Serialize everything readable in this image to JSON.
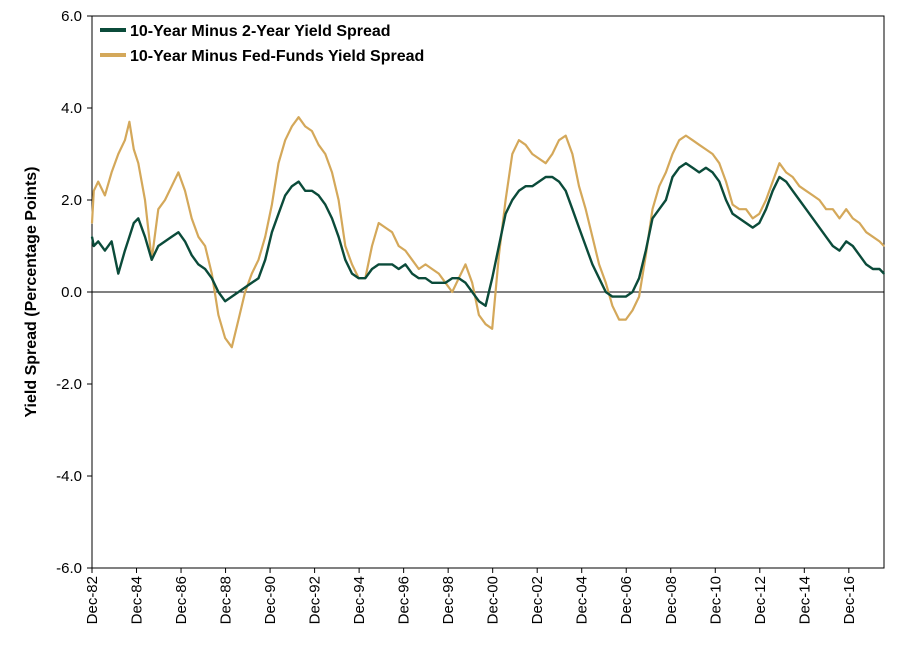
{
  "chart_data": {
    "type": "line",
    "title": "",
    "xlabel": "",
    "ylabel": "Yield Spread (Percentage Points)",
    "ylim": [
      -6.0,
      6.0
    ],
    "yticks": [
      "6.0",
      "4.0",
      "2.0",
      "0.0",
      "-2.0",
      "-4.0",
      "-6.0"
    ],
    "ytick_values": [
      6,
      4,
      2,
      0,
      -2,
      -4,
      -6
    ],
    "xlim": [
      1982.92,
      2018.5
    ],
    "xticks": [
      "Dec-82",
      "Dec-84",
      "Dec-86",
      "Dec-88",
      "Dec-90",
      "Dec-92",
      "Dec-94",
      "Dec-96",
      "Dec-98",
      "Dec-00",
      "Dec-02",
      "Dec-04",
      "Dec-06",
      "Dec-08",
      "Dec-10",
      "Dec-12",
      "Dec-14",
      "Dec-16"
    ],
    "xtick_values": [
      1982.92,
      1984.92,
      1986.92,
      1988.92,
      1990.92,
      1992.92,
      1994.92,
      1996.92,
      1998.92,
      2000.92,
      2002.92,
      2004.92,
      2006.92,
      2008.92,
      2010.92,
      2012.92,
      2014.92,
      2016.92
    ],
    "grid": false,
    "legend_position": "top-left",
    "series": [
      {
        "name": "10-Year Minus Fed-Funds Yield Spread",
        "color": "#D4A85A",
        "x": [
          1982.92,
          1983.0,
          1983.2,
          1983.5,
          1983.8,
          1984.1,
          1984.4,
          1984.6,
          1984.8,
          1985.0,
          1985.3,
          1985.6,
          1985.9,
          1986.2,
          1986.5,
          1986.8,
          1987.1,
          1987.4,
          1987.7,
          1988.0,
          1988.3,
          1988.6,
          1988.9,
          1989.2,
          1989.5,
          1989.8,
          1990.1,
          1990.4,
          1990.7,
          1991.0,
          1991.3,
          1991.6,
          1991.9,
          1992.2,
          1992.5,
          1992.8,
          1993.1,
          1993.4,
          1993.7,
          1994.0,
          1994.3,
          1994.6,
          1994.9,
          1995.2,
          1995.5,
          1995.8,
          1996.1,
          1996.4,
          1996.7,
          1997.0,
          1997.3,
          1997.6,
          1997.9,
          1998.2,
          1998.5,
          1998.8,
          1999.1,
          1999.4,
          1999.7,
          2000.0,
          2000.3,
          2000.6,
          2000.9,
          2001.2,
          2001.5,
          2001.8,
          2002.1,
          2002.4,
          2002.7,
          2003.0,
          2003.3,
          2003.6,
          2003.9,
          2004.2,
          2004.5,
          2004.8,
          2005.1,
          2005.4,
          2005.7,
          2006.0,
          2006.3,
          2006.6,
          2006.9,
          2007.2,
          2007.5,
          2007.8,
          2008.1,
          2008.4,
          2008.7,
          2009.0,
          2009.3,
          2009.6,
          2009.9,
          2010.2,
          2010.5,
          2010.8,
          2011.1,
          2011.4,
          2011.7,
          2012.0,
          2012.3,
          2012.6,
          2012.9,
          2013.2,
          2013.5,
          2013.8,
          2014.1,
          2014.4,
          2014.7,
          2015.0,
          2015.3,
          2015.6,
          2015.9,
          2016.2,
          2016.5,
          2016.8,
          2017.1,
          2017.4,
          2017.7,
          2018.0,
          2018.3,
          2018.5
        ],
        "values": [
          1.5,
          2.2,
          2.4,
          2.1,
          2.6,
          3.0,
          3.3,
          3.7,
          3.1,
          2.8,
          2.0,
          0.7,
          1.8,
          2.0,
          2.3,
          2.6,
          2.2,
          1.6,
          1.2,
          1.0,
          0.4,
          -0.5,
          -1.0,
          -1.2,
          -0.6,
          0.0,
          0.4,
          0.7,
          1.2,
          1.9,
          2.8,
          3.3,
          3.6,
          3.8,
          3.6,
          3.5,
          3.2,
          3.0,
          2.6,
          2.0,
          1.0,
          0.6,
          0.3,
          0.3,
          1.0,
          1.5,
          1.4,
          1.3,
          1.0,
          0.9,
          0.7,
          0.5,
          0.6,
          0.5,
          0.4,
          0.2,
          0.0,
          0.3,
          0.6,
          0.2,
          -0.5,
          -0.7,
          -0.8,
          0.8,
          2.0,
          3.0,
          3.3,
          3.2,
          3.0,
          2.9,
          2.8,
          3.0,
          3.3,
          3.4,
          3.0,
          2.3,
          1.8,
          1.2,
          0.6,
          0.2,
          -0.3,
          -0.6,
          -0.6,
          -0.4,
          -0.1,
          0.8,
          1.8,
          2.3,
          2.6,
          3.0,
          3.3,
          3.4,
          3.3,
          3.2,
          3.1,
          3.0,
          2.8,
          2.4,
          1.9,
          1.8,
          1.8,
          1.6,
          1.7,
          2.0,
          2.4,
          2.8,
          2.6,
          2.5,
          2.3,
          2.2,
          2.1,
          2.0,
          1.8,
          1.8,
          1.6,
          1.8,
          1.6,
          1.5,
          1.3,
          1.2,
          1.1,
          1.0
        ]
      },
      {
        "name": "10-Year Minus 2-Year Yield Spread",
        "color": "#0B4B3A",
        "x": [
          1982.92,
          1983.0,
          1983.2,
          1983.5,
          1983.8,
          1984.1,
          1984.4,
          1984.6,
          1984.8,
          1985.0,
          1985.3,
          1985.6,
          1985.9,
          1986.2,
          1986.5,
          1986.8,
          1987.1,
          1987.4,
          1987.7,
          1988.0,
          1988.3,
          1988.6,
          1988.9,
          1989.2,
          1989.5,
          1989.8,
          1990.1,
          1990.4,
          1990.7,
          1991.0,
          1991.3,
          1991.6,
          1991.9,
          1992.2,
          1992.5,
          1992.8,
          1993.1,
          1993.4,
          1993.7,
          1994.0,
          1994.3,
          1994.6,
          1994.9,
          1995.2,
          1995.5,
          1995.8,
          1996.1,
          1996.4,
          1996.7,
          1997.0,
          1997.3,
          1997.6,
          1997.9,
          1998.2,
          1998.5,
          1998.8,
          1999.1,
          1999.4,
          1999.7,
          2000.0,
          2000.3,
          2000.6,
          2000.9,
          2001.2,
          2001.5,
          2001.8,
          2002.1,
          2002.4,
          2002.7,
          2003.0,
          2003.3,
          2003.6,
          2003.9,
          2004.2,
          2004.5,
          2004.8,
          2005.1,
          2005.4,
          2005.7,
          2006.0,
          2006.3,
          2006.6,
          2006.9,
          2007.2,
          2007.5,
          2007.8,
          2008.1,
          2008.4,
          2008.7,
          2009.0,
          2009.3,
          2009.6,
          2009.9,
          2010.2,
          2010.5,
          2010.8,
          2011.1,
          2011.4,
          2011.7,
          2012.0,
          2012.3,
          2012.6,
          2012.9,
          2013.2,
          2013.5,
          2013.8,
          2014.1,
          2014.4,
          2014.7,
          2015.0,
          2015.3,
          2015.6,
          2015.9,
          2016.2,
          2016.5,
          2016.8,
          2017.1,
          2017.4,
          2017.7,
          2018.0,
          2018.3,
          2018.5
        ],
        "values": [
          1.2,
          1.0,
          1.1,
          0.9,
          1.1,
          0.4,
          0.9,
          1.2,
          1.5,
          1.6,
          1.2,
          0.7,
          1.0,
          1.1,
          1.2,
          1.3,
          1.1,
          0.8,
          0.6,
          0.5,
          0.3,
          0.0,
          -0.2,
          -0.1,
          0.0,
          0.1,
          0.2,
          0.3,
          0.7,
          1.3,
          1.7,
          2.1,
          2.3,
          2.4,
          2.2,
          2.2,
          2.1,
          1.9,
          1.6,
          1.2,
          0.7,
          0.4,
          0.3,
          0.3,
          0.5,
          0.6,
          0.6,
          0.6,
          0.5,
          0.6,
          0.4,
          0.3,
          0.3,
          0.2,
          0.2,
          0.2,
          0.3,
          0.3,
          0.2,
          0.0,
          -0.2,
          -0.3,
          0.3,
          1.0,
          1.7,
          2.0,
          2.2,
          2.3,
          2.3,
          2.4,
          2.5,
          2.5,
          2.4,
          2.2,
          1.8,
          1.4,
          1.0,
          0.6,
          0.3,
          0.0,
          -0.1,
          -0.1,
          -0.1,
          0.0,
          0.3,
          0.9,
          1.6,
          1.8,
          2.0,
          2.5,
          2.7,
          2.8,
          2.7,
          2.6,
          2.7,
          2.6,
          2.4,
          2.0,
          1.7,
          1.6,
          1.5,
          1.4,
          1.5,
          1.8,
          2.2,
          2.5,
          2.4,
          2.2,
          2.0,
          1.8,
          1.6,
          1.4,
          1.2,
          1.0,
          0.9,
          1.1,
          1.0,
          0.8,
          0.6,
          0.5,
          0.5,
          0.4
        ]
      }
    ]
  }
}
